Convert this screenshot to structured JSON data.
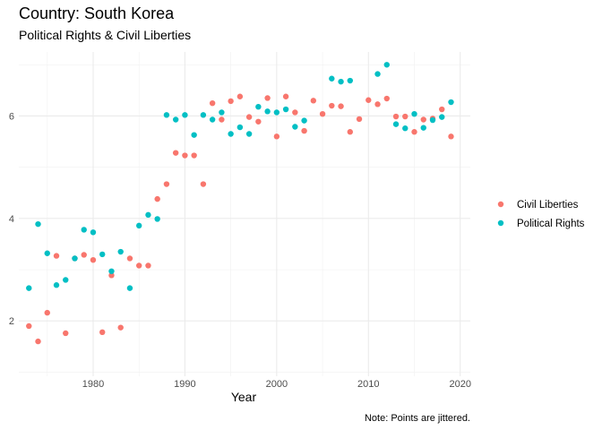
{
  "chart_data": {
    "type": "scatter",
    "title": "Country: South Korea",
    "subtitle": "Political Rights & Civil Liberties",
    "xlabel": "Year",
    "ylabel": "",
    "caption": "Note: Points are jittered.",
    "xlim": [
      1971.9,
      2021.1
    ],
    "ylim": [
      0.92,
      7.25
    ],
    "x_ticks": [
      1980,
      1990,
      2000,
      2010,
      2020
    ],
    "y_ticks": [
      2,
      4,
      6
    ],
    "grid": true,
    "legend_position": "right",
    "series": [
      {
        "name": "Civil Liberties",
        "color": "#F8766D",
        "points": [
          [
            1973,
            1.9
          ],
          [
            1974,
            1.6
          ],
          [
            1975,
            2.16
          ],
          [
            1976,
            3.27
          ],
          [
            1977,
            1.76
          ],
          [
            1978,
            3.22
          ],
          [
            1979,
            3.29
          ],
          [
            1980,
            3.19
          ],
          [
            1981,
            1.78
          ],
          [
            1982,
            2.89
          ],
          [
            1983,
            1.87
          ],
          [
            1984,
            3.22
          ],
          [
            1985,
            3.08
          ],
          [
            1986,
            3.08
          ],
          [
            1987,
            4.38
          ],
          [
            1988,
            4.67
          ],
          [
            1989,
            5.28
          ],
          [
            1990,
            5.23
          ],
          [
            1991,
            5.23
          ],
          [
            1992,
            4.67
          ],
          [
            1993,
            6.25
          ],
          [
            1994,
            5.93
          ],
          [
            1995,
            6.29
          ],
          [
            1996,
            6.38
          ],
          [
            1997,
            5.98
          ],
          [
            1998,
            5.89
          ],
          [
            1999,
            6.35
          ],
          [
            2000,
            5.6
          ],
          [
            2001,
            6.38
          ],
          [
            2002,
            6.07
          ],
          [
            2003,
            5.71
          ],
          [
            2004,
            6.3
          ],
          [
            2005,
            6.04
          ],
          [
            2006,
            6.2
          ],
          [
            2007,
            6.19
          ],
          [
            2008,
            5.69
          ],
          [
            2009,
            5.94
          ],
          [
            2010,
            6.31
          ],
          [
            2011,
            6.23
          ],
          [
            2012,
            6.34
          ],
          [
            2013,
            5.99
          ],
          [
            2014,
            5.99
          ],
          [
            2015,
            5.69
          ],
          [
            2016,
            5.93
          ],
          [
            2017,
            5.95
          ],
          [
            2018,
            6.13
          ],
          [
            2019,
            5.6
          ]
        ]
      },
      {
        "name": "Political Rights",
        "color": "#00BFC4",
        "points": [
          [
            1973,
            2.64
          ],
          [
            1974,
            3.89
          ],
          [
            1975,
            3.32
          ],
          [
            1976,
            2.7
          ],
          [
            1977,
            2.8
          ],
          [
            1978,
            3.22
          ],
          [
            1979,
            3.78
          ],
          [
            1980,
            3.73
          ],
          [
            1981,
            3.3
          ],
          [
            1982,
            2.97
          ],
          [
            1983,
            3.35
          ],
          [
            1984,
            2.64
          ],
          [
            1985,
            3.86
          ],
          [
            1986,
            4.07
          ],
          [
            1987,
            3.99
          ],
          [
            1988,
            6.02
          ],
          [
            1989,
            5.93
          ],
          [
            1990,
            6.02
          ],
          [
            1991,
            5.63
          ],
          [
            1992,
            6.02
          ],
          [
            1993,
            5.93
          ],
          [
            1994,
            6.07
          ],
          [
            1995,
            5.65
          ],
          [
            1996,
            5.78
          ],
          [
            1997,
            5.65
          ],
          [
            1998,
            6.18
          ],
          [
            1999,
            6.09
          ],
          [
            2000,
            6.07
          ],
          [
            2001,
            6.13
          ],
          [
            2002,
            5.79
          ],
          [
            2003,
            5.91
          ],
          [
            2006,
            6.73
          ],
          [
            2007,
            6.67
          ],
          [
            2008,
            6.69
          ],
          [
            2011,
            6.82
          ],
          [
            2012,
            7.0
          ],
          [
            2013,
            5.84
          ],
          [
            2014,
            5.76
          ],
          [
            2015,
            6.04
          ],
          [
            2016,
            5.77
          ],
          [
            2017,
            5.92
          ],
          [
            2018,
            5.98
          ],
          [
            2019,
            6.27
          ]
        ]
      }
    ]
  }
}
